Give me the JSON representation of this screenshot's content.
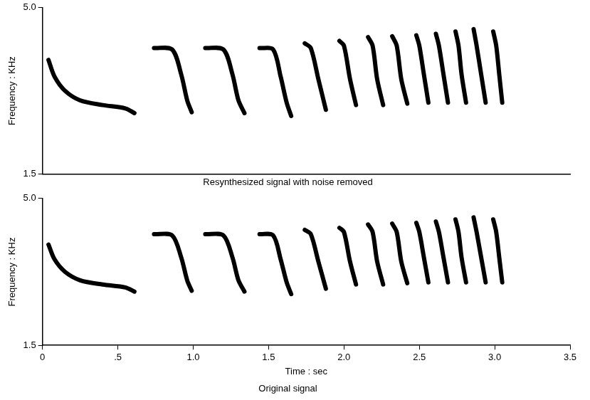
{
  "chart_data": [
    {
      "type": "line",
      "title": "Resynthesized signal with noise removed",
      "ylabel": "Frequency : KHz",
      "xlim": [
        0,
        3.5
      ],
      "ylim": [
        1.5,
        5.0
      ],
      "yticks": [
        1.5,
        {
          "value": 5.0,
          "label": "5.0"
        }
      ],
      "grid": false,
      "tick_labels": "y",
      "series": [
        {
          "color": "#000000",
          "x": [
            0.04,
            0.08,
            0.15,
            0.25,
            0.4,
            0.55,
            0.61
          ],
          "values": [
            3.9,
            3.55,
            3.25,
            3.05,
            2.95,
            2.88,
            2.78
          ]
        },
        {
          "color": "#000000",
          "x": [
            0.74,
            0.86,
            0.92,
            0.96,
            0.99
          ],
          "values": [
            4.15,
            4.12,
            3.6,
            3.05,
            2.8
          ]
        },
        {
          "color": "#000000",
          "x": [
            1.08,
            1.2,
            1.26,
            1.3,
            1.34
          ],
          "values": [
            4.15,
            4.12,
            3.6,
            3.05,
            2.78
          ]
        },
        {
          "color": "#000000",
          "x": [
            1.44,
            1.53,
            1.58,
            1.62,
            1.65
          ],
          "values": [
            4.15,
            4.12,
            3.55,
            3.0,
            2.72
          ]
        },
        {
          "color": "#000000",
          "x": [
            1.74,
            1.78,
            1.83,
            1.88
          ],
          "values": [
            4.25,
            4.15,
            3.5,
            2.85
          ]
        },
        {
          "color": "#000000",
          "x": [
            1.97,
            2.0,
            2.04,
            2.08
          ],
          "values": [
            4.3,
            4.2,
            3.5,
            2.95
          ]
        },
        {
          "color": "#000000",
          "x": [
            2.16,
            2.19,
            2.22,
            2.26
          ],
          "values": [
            4.38,
            4.2,
            3.5,
            2.95
          ]
        },
        {
          "color": "#000000",
          "x": [
            2.32,
            2.35,
            2.38,
            2.42
          ],
          "values": [
            4.4,
            4.2,
            3.5,
            2.98
          ]
        },
        {
          "color": "#000000",
          "x": [
            2.48,
            2.5,
            2.53,
            2.56
          ],
          "values": [
            4.42,
            4.2,
            3.6,
            3.0
          ]
        },
        {
          "color": "#000000",
          "x": [
            2.61,
            2.63,
            2.66,
            2.69
          ],
          "values": [
            4.45,
            4.2,
            3.6,
            3.0
          ]
        },
        {
          "color": "#000000",
          "x": [
            2.74,
            2.76,
            2.78,
            2.81
          ],
          "values": [
            4.5,
            4.2,
            3.6,
            3.0
          ]
        },
        {
          "color": "#000000",
          "x": [
            2.86,
            2.88,
            2.91,
            2.94
          ],
          "values": [
            4.55,
            4.2,
            3.6,
            3.0
          ]
        },
        {
          "color": "#000000",
          "x": [
            2.99,
            3.01,
            3.03,
            3.05
          ],
          "values": [
            4.5,
            4.2,
            3.6,
            3.0
          ]
        }
      ]
    },
    {
      "type": "line",
      "title": "Original signal",
      "xlabel": "Time : sec",
      "ylabel": "Frequency : KHz",
      "xlim": [
        0,
        3.5
      ],
      "ylim": [
        1.5,
        5.0
      ],
      "xticks": [
        0,
        {
          "value": 0.5,
          "label": ".5"
        },
        {
          "value": 1.0,
          "label": "1.0"
        },
        1.5,
        {
          "value": 2.0,
          "label": "2.0"
        },
        2.5,
        {
          "value": 3.0,
          "label": "3.0"
        },
        3.5
      ],
      "yticks": [
        1.5,
        {
          "value": 5.0,
          "label": "5.0"
        }
      ],
      "grid": false,
      "series": [
        {
          "color": "#000000",
          "x": [
            0.04,
            0.08,
            0.15,
            0.25,
            0.4,
            0.55,
            0.61
          ],
          "values": [
            3.9,
            3.55,
            3.25,
            3.05,
            2.95,
            2.88,
            2.78
          ]
        },
        {
          "color": "#000000",
          "x": [
            0.74,
            0.86,
            0.92,
            0.96,
            0.99
          ],
          "values": [
            4.15,
            4.12,
            3.6,
            3.05,
            2.8
          ]
        },
        {
          "color": "#000000",
          "x": [
            1.08,
            1.2,
            1.26,
            1.3,
            1.34
          ],
          "values": [
            4.15,
            4.12,
            3.6,
            3.05,
            2.78
          ]
        },
        {
          "color": "#000000",
          "x": [
            1.44,
            1.53,
            1.58,
            1.62,
            1.65
          ],
          "values": [
            4.15,
            4.12,
            3.55,
            3.0,
            2.72
          ]
        },
        {
          "color": "#000000",
          "x": [
            1.74,
            1.78,
            1.83,
            1.88
          ],
          "values": [
            4.25,
            4.15,
            3.5,
            2.85
          ]
        },
        {
          "color": "#000000",
          "x": [
            1.97,
            2.0,
            2.04,
            2.08
          ],
          "values": [
            4.3,
            4.2,
            3.5,
            2.95
          ]
        },
        {
          "color": "#000000",
          "x": [
            2.16,
            2.19,
            2.22,
            2.26
          ],
          "values": [
            4.38,
            4.2,
            3.5,
            2.95
          ]
        },
        {
          "color": "#000000",
          "x": [
            2.32,
            2.35,
            2.38,
            2.42
          ],
          "values": [
            4.4,
            4.2,
            3.5,
            2.98
          ]
        },
        {
          "color": "#000000",
          "x": [
            2.48,
            2.5,
            2.53,
            2.56
          ],
          "values": [
            4.42,
            4.2,
            3.6,
            3.0
          ]
        },
        {
          "color": "#000000",
          "x": [
            2.61,
            2.63,
            2.66,
            2.69
          ],
          "values": [
            4.45,
            4.2,
            3.6,
            3.0
          ]
        },
        {
          "color": "#000000",
          "x": [
            2.74,
            2.76,
            2.78,
            2.81
          ],
          "values": [
            4.5,
            4.2,
            3.6,
            3.0
          ]
        },
        {
          "color": "#000000",
          "x": [
            2.86,
            2.88,
            2.91,
            2.94
          ],
          "values": [
            4.55,
            4.2,
            3.6,
            3.0
          ]
        },
        {
          "color": "#000000",
          "x": [
            2.99,
            3.01,
            3.03,
            3.05
          ],
          "values": [
            4.5,
            4.2,
            3.6,
            3.0
          ]
        }
      ]
    }
  ]
}
